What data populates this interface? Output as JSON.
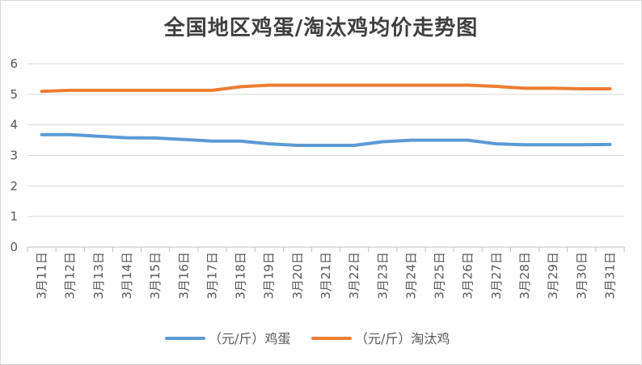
{
  "chart_data": {
    "type": "line",
    "title": "全国地区鸡蛋/淘汰鸡均价走势图",
    "categories": [
      "3月11日",
      "3月12日",
      "3月13日",
      "3月14日",
      "3月15日",
      "3月16日",
      "3月17日",
      "3月18日",
      "3月19日",
      "3月20日",
      "3月21日",
      "3月22日",
      "3月23日",
      "3月24日",
      "3月25日",
      "3月26日",
      "3月27日",
      "3月28日",
      "3月29日",
      "3月30日",
      "3月31日"
    ],
    "series": [
      {
        "name": "（元/斤）鸡蛋",
        "color": "#5b9bd5",
        "values": [
          3.68,
          3.68,
          3.63,
          3.58,
          3.57,
          3.52,
          3.47,
          3.47,
          3.38,
          3.33,
          3.33,
          3.33,
          3.45,
          3.5,
          3.5,
          3.5,
          3.38,
          3.35,
          3.35,
          3.35,
          3.36
        ]
      },
      {
        "name": "（元/斤）淘汰鸡",
        "color": "#ed7d31",
        "values": [
          5.1,
          5.13,
          5.13,
          5.13,
          5.13,
          5.13,
          5.13,
          5.25,
          5.3,
          5.3,
          5.3,
          5.3,
          5.3,
          5.3,
          5.3,
          5.3,
          5.26,
          5.2,
          5.2,
          5.18,
          5.18
        ]
      }
    ],
    "ylim": [
      0,
      6
    ],
    "yticks": [
      0,
      1,
      2,
      3,
      4,
      5,
      6
    ],
    "grid": true,
    "legend": "bottom"
  }
}
